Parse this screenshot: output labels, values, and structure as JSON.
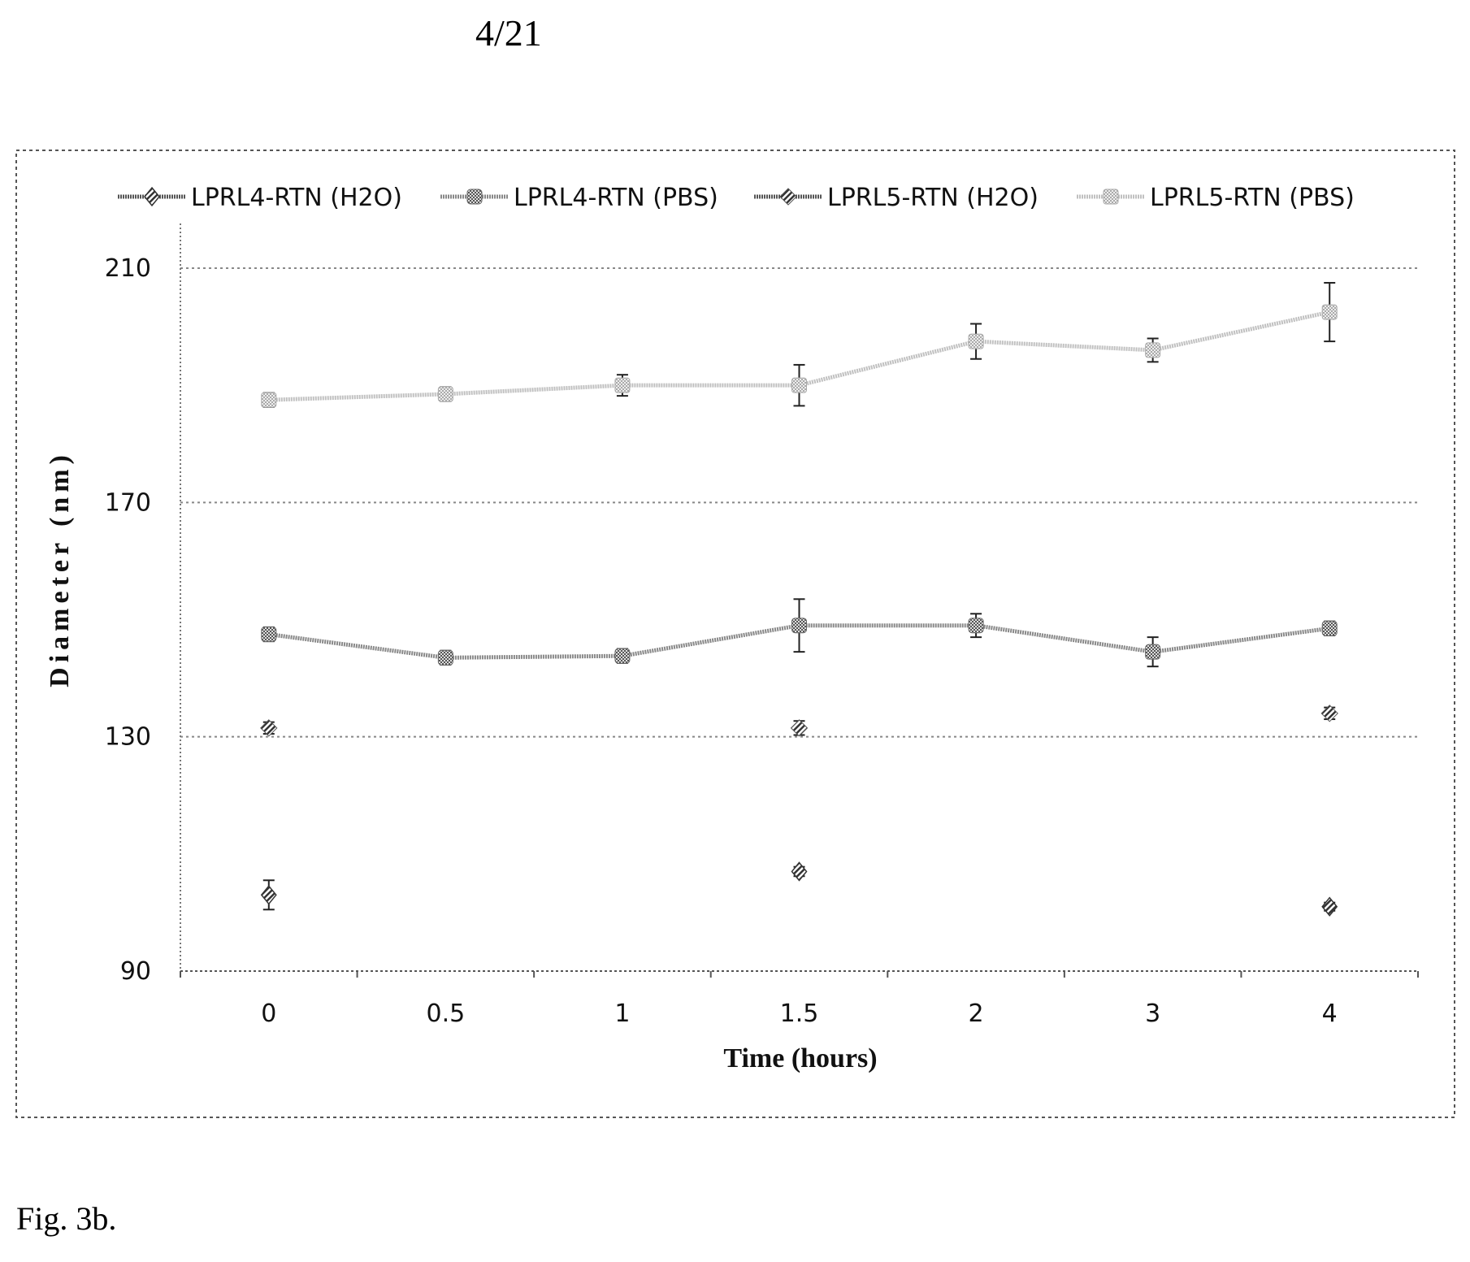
{
  "header": {
    "page_number": "4/21"
  },
  "caption": {
    "text": "Fig. 3b."
  },
  "chart_data": {
    "type": "line",
    "title": "",
    "xlabel": "Time (hours)",
    "ylabel": "Diameter (nm)",
    "categories": [
      "0",
      "0.5",
      "1",
      "1.5",
      "2",
      "3",
      "4"
    ],
    "ylim": [
      90,
      210
    ],
    "yticks": [
      "210",
      "170",
      "130",
      "90"
    ],
    "grid": "horizontal dotted",
    "legend_position": "top",
    "colors": {
      "frame": "#555555",
      "grid": "#888888",
      "axis": "#777777",
      "lprl4_pbs": "#888888",
      "lprl5_pbs": "#c0c0c0",
      "h2o": "#555555"
    },
    "series": [
      {
        "name": "LPRL4-RTN (H2O)",
        "marker": "diamond",
        "connected": false,
        "values": [
          103,
          null,
          null,
          107,
          null,
          null,
          101
        ],
        "errors": [
          2.5,
          null,
          null,
          0.8,
          null,
          null,
          0.7
        ]
      },
      {
        "name": "LPRL4-RTN (PBS)",
        "marker": "circle",
        "connected": true,
        "values": [
          147.5,
          143.5,
          143.8,
          149,
          149,
          144.5,
          148.5
        ],
        "errors": [
          1.2,
          1.2,
          1.2,
          4.5,
          2,
          2.5,
          1.2
        ]
      },
      {
        "name": "LPRL5-RTN (H2O)",
        "marker": "hatched-diamond",
        "connected": false,
        "values": [
          131.5,
          null,
          null,
          131.5,
          null,
          null,
          134
        ],
        "errors": [
          1,
          null,
          null,
          1.2,
          null,
          null,
          1
        ]
      },
      {
        "name": "LPRL5-RTN (PBS)",
        "marker": "square",
        "connected": true,
        "values": [
          187.5,
          188.5,
          190,
          190,
          197.5,
          196,
          202.5
        ],
        "errors": [
          1.2,
          1.2,
          1.8,
          3.5,
          3,
          2,
          5
        ]
      }
    ]
  }
}
